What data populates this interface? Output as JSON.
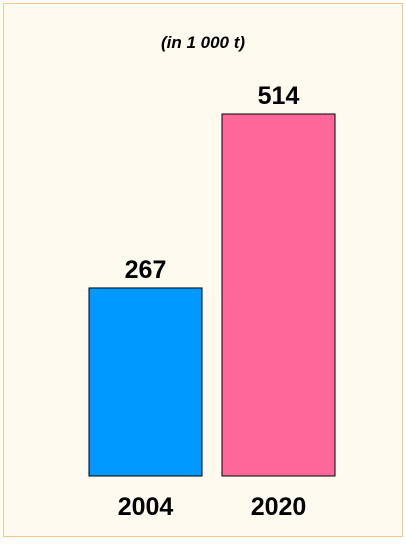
{
  "chart_data": {
    "type": "bar",
    "subtitle": "(in 1 000 t)",
    "categories": [
      "2004",
      "2020"
    ],
    "values": [
      267,
      514
    ],
    "colors": [
      "#0099ff",
      "#ff6699"
    ]
  }
}
